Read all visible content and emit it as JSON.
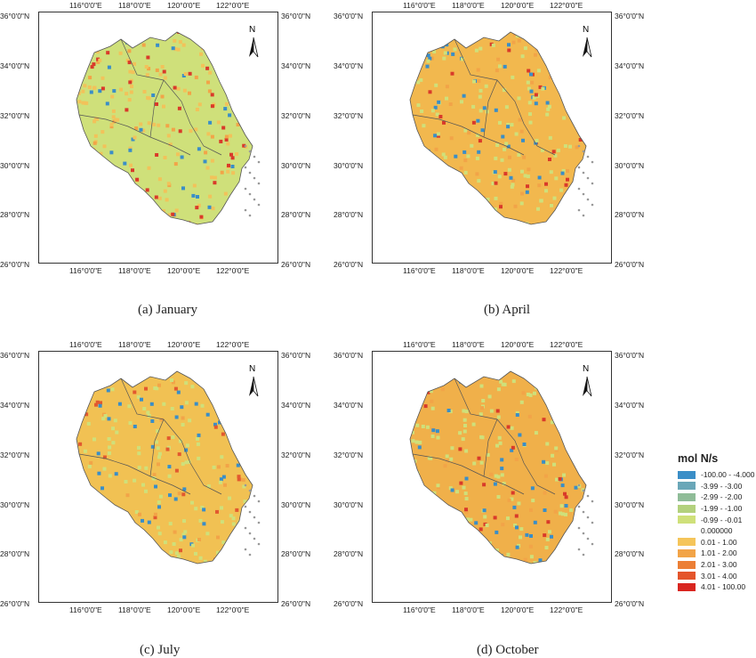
{
  "lon_ticks": [
    "116°0'0\"E",
    "118°0'0\"E",
    "120°0'0\"E",
    "122°0'0\"E"
  ],
  "lat_ticks": [
    "36°0'0\"N",
    "34°0'0\"N",
    "32°0'0\"N",
    "30°0'0\"N",
    "28°0'0\"N",
    "26°0'0\"N"
  ],
  "north_label": "N",
  "panels": [
    {
      "caption": "(a) January",
      "base_color": "#cfe07a",
      "accent": "#f2c25a",
      "hot": "#d93a2a",
      "cool": "#3a8ec7"
    },
    {
      "caption": "(b) April",
      "base_color": "#f2b84e",
      "accent": "#cfe07a",
      "hot": "#d93a2a",
      "cool": "#3a8ec7"
    },
    {
      "caption": "(c) July",
      "base_color": "#f1c153",
      "accent": "#cfe07a",
      "hot": "#e2592f",
      "cool": "#3a8ec7"
    },
    {
      "caption": "(d) October",
      "base_color": "#f0b04a",
      "accent": "#cfe07a",
      "hot": "#d93a2a",
      "cool": "#3a8ec7"
    }
  ],
  "legend": {
    "title": "mol N/s",
    "items": [
      {
        "label": "-100.00 - -4.000",
        "color": "#3a8ec7"
      },
      {
        "label": "-3.99 - -3.00",
        "color": "#6aa7b8"
      },
      {
        "label": "-2.99 - -2.00",
        "color": "#8fbc98"
      },
      {
        "label": "-1.99 - -1.00",
        "color": "#b3d17d"
      },
      {
        "label": "-0.99 - -0.01",
        "color": "#cfe07a"
      },
      {
        "label": "0.000000",
        "color": "#ffffff"
      },
      {
        "label": "0.01 - 1.00",
        "color": "#f5c55a"
      },
      {
        "label": "1.01 - 2.00",
        "color": "#f2a448"
      },
      {
        "label": "2.01 - 3.00",
        "color": "#ec7f36"
      },
      {
        "label": "3.01 - 4.00",
        "color": "#e4552b"
      },
      {
        "label": "4.01 - 100.00",
        "color": "#d9251f"
      }
    ]
  }
}
